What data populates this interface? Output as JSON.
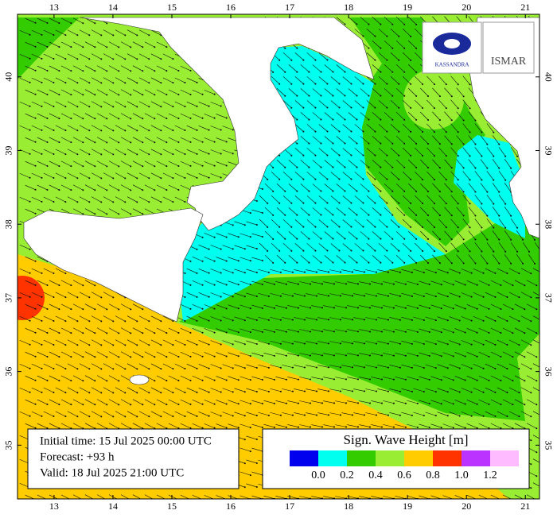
{
  "map": {
    "lon_lim": [
      12.38,
      21.24
    ],
    "lat_lim": [
      34.27,
      40.85
    ],
    "lon_ticks": [
      13,
      14,
      15,
      16,
      17,
      18,
      19,
      20,
      21
    ],
    "lat_ticks": [
      35,
      36,
      37,
      38,
      39,
      40
    ],
    "info": [
      "Initial time: 15 Jul 2025 00:00 UTC",
      "Forecast: +93 h",
      "Valid: 18 Jul 2025 21:00 UTC"
    ],
    "legend": {
      "title": "Sign. Wave Height [m]",
      "colors": [
        "#0000ee",
        "#00ffee",
        "#33cc00",
        "#99ee33",
        "#ffcc00",
        "#ff3300",
        "#bb33ff",
        "#ffbbff"
      ],
      "labels": [
        "0.0",
        "0.2",
        "0.4",
        "0.6",
        "0.8",
        "1.0",
        "1.2"
      ]
    },
    "logos": [
      "KASSANDRA",
      "ISMAR"
    ]
  }
}
